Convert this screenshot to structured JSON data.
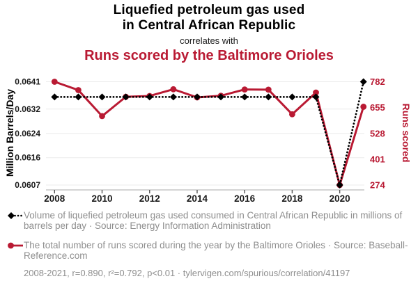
{
  "title": {
    "line1": "Liquefied petroleum gas used",
    "line2": "in Central African Republic",
    "connector": "correlates with",
    "subtitle": "Runs scored by the Baltimore Orioles"
  },
  "colors": {
    "accent_red": "#b91a33",
    "series_black": "#000000",
    "legend_gray": "#8e8e8e",
    "gridline": "#ebebeb",
    "axis_line": "#aaaaaa",
    "tick_text": "#1a1a1a"
  },
  "chart_data": {
    "type": "line",
    "x": [
      2008,
      2009,
      2010,
      2011,
      2012,
      2013,
      2014,
      2015,
      2016,
      2017,
      2018,
      2019,
      2020,
      2021
    ],
    "series": [
      {
        "name": "Liquefied petroleum gas used in Central African Republic",
        "axis": "left",
        "style": "dotted-diamond",
        "color": "#000000",
        "values": [
          0.0636,
          0.0636,
          0.0636,
          0.0636,
          0.0636,
          0.0636,
          0.0636,
          0.0636,
          0.0636,
          0.0636,
          0.0636,
          0.0636,
          0.0607,
          0.0641
        ]
      },
      {
        "name": "Runs scored by the Baltimore Orioles",
        "axis": "right",
        "style": "solid-circle",
        "color": "#b91a33",
        "values": [
          782,
          741,
          613,
          708,
          712,
          745,
          705,
          713,
          744,
          743,
          622,
          729,
          274,
          659
        ]
      }
    ],
    "left_axis": {
      "label": "Million Barrels/Day",
      "tick_labels": [
        "0.0641",
        "0.0632",
        "0.0624",
        "0.0616",
        "0.0607"
      ],
      "ticks": [
        0.0641,
        0.0632,
        0.0624,
        0.0616,
        0.0607
      ],
      "range": [
        0.0607,
        0.0641
      ]
    },
    "right_axis": {
      "label": "Runs scored",
      "ticks": [
        782,
        655,
        528,
        401,
        274
      ],
      "range": [
        274,
        782
      ]
    },
    "x_axis": {
      "ticks": [
        2008,
        2010,
        2012,
        2014,
        2016,
        2018,
        2020
      ],
      "range": [
        2008,
        2021
      ]
    },
    "grid": "horizontal",
    "legend_position": "bottom"
  },
  "legend": [
    {
      "text": "Volume of liquefied petroleum gas used consumed in Central African Republic in millions of barrels per day · Source: Energy Information Administration"
    },
    {
      "text": "The total number of runs scored during the year by the Baltimore Orioles · Source: Baseball-Reference.com"
    }
  ],
  "footer": {
    "text": "2008-2021, r=0.890, r²=0.792, p<0.01 · tylervigen.com/spurious/correlation/41197"
  }
}
